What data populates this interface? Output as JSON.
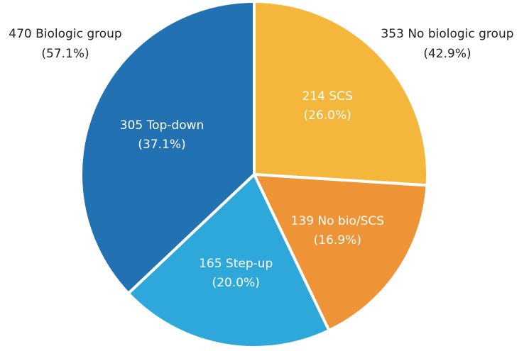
{
  "chart_data": {
    "type": "pie",
    "categories": [
      "SCS",
      "No bio/SCS",
      "Step-up",
      "Top-down"
    ],
    "values": [
      214,
      139,
      165,
      305
    ],
    "value_labels": [
      "214 SCS",
      "139 No bio/SCS",
      "165 Step-up",
      "305 Top-down"
    ],
    "percent_labels": [
      "(26.0%)",
      "(16.9%)",
      "(20.0%)",
      "(37.1%)"
    ],
    "colors": [
      "#f4b63b",
      "#ee9336",
      "#2ea7db",
      "#2271b2"
    ],
    "group_labels": [
      {
        "label": "470 Biologic group",
        "percent_label": "(57.1%)"
      },
      {
        "label": "353 No biologic group",
        "percent_label": "(42.9%)"
      }
    ]
  }
}
